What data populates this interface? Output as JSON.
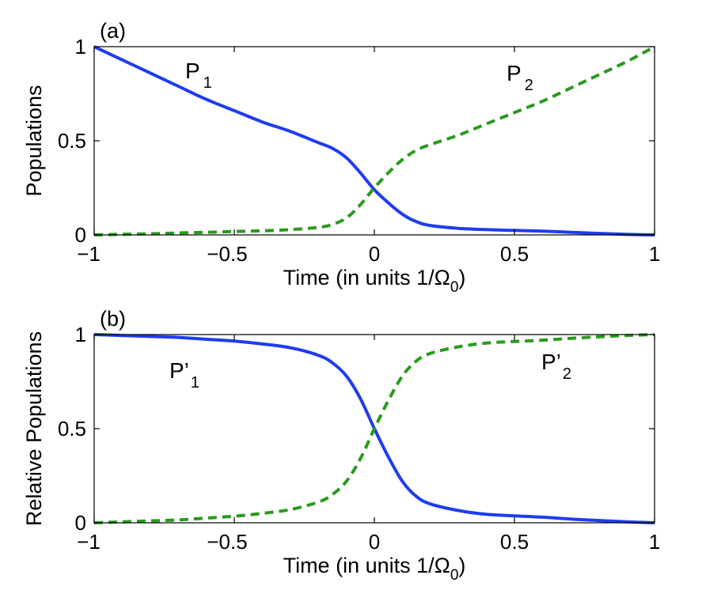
{
  "chart_data": [
    {
      "panel_label": "(a)",
      "type": "line",
      "xlabel": "Time (in units 1/Ω",
      "xlabel_sub": "0",
      "xlabel_close": ")",
      "ylabel": "Populations",
      "xlim": [
        -1,
        1
      ],
      "ylim": [
        0,
        1
      ],
      "xticks": [
        -1,
        -0.5,
        0,
        0.5,
        1
      ],
      "xtick_labels": [
        "−1",
        "−0.5",
        "0",
        "0.5",
        "1"
      ],
      "yticks": [
        0,
        0.5,
        1
      ],
      "ytick_labels": [
        "0",
        "0.5",
        "1"
      ],
      "grid": false,
      "series": [
        {
          "name": "P",
          "name_sub": "1",
          "color": "#1f3cf0",
          "style": "solid",
          "x": [
            -1,
            -0.9,
            -0.8,
            -0.7,
            -0.6,
            -0.5,
            -0.4,
            -0.3,
            -0.2,
            -0.15,
            -0.1,
            -0.05,
            0,
            0.05,
            0.1,
            0.15,
            0.2,
            0.3,
            0.4,
            0.5,
            0.6,
            0.7,
            0.8,
            0.9,
            1
          ],
          "y": [
            1,
            0.93,
            0.86,
            0.79,
            0.72,
            0.66,
            0.6,
            0.55,
            0.49,
            0.46,
            0.41,
            0.33,
            0.24,
            0.17,
            0.11,
            0.07,
            0.05,
            0.035,
            0.028,
            0.024,
            0.02,
            0.014,
            0.008,
            0.003,
            0
          ]
        },
        {
          "name": "P",
          "name_sub": "2",
          "color": "#2a9a1e",
          "style": "dashed",
          "x": [
            -1,
            -0.9,
            -0.8,
            -0.7,
            -0.6,
            -0.5,
            -0.4,
            -0.3,
            -0.2,
            -0.15,
            -0.1,
            -0.05,
            0,
            0.05,
            0.1,
            0.15,
            0.2,
            0.3,
            0.4,
            0.5,
            0.6,
            0.7,
            0.8,
            0.9,
            1
          ],
          "y": [
            0,
            0.003,
            0.006,
            0.01,
            0.014,
            0.018,
            0.022,
            0.028,
            0.04,
            0.055,
            0.09,
            0.16,
            0.25,
            0.33,
            0.4,
            0.45,
            0.48,
            0.53,
            0.59,
            0.65,
            0.71,
            0.78,
            0.85,
            0.92,
            1
          ]
        }
      ]
    },
    {
      "panel_label": "(b)",
      "type": "line",
      "xlabel": "Time (in units 1/Ω",
      "xlabel_sub": "0",
      "xlabel_close": ")",
      "ylabel": "Relative Populations",
      "xlim": [
        -1,
        1
      ],
      "ylim": [
        0,
        1
      ],
      "xticks": [
        -1,
        -0.5,
        0,
        0.5,
        1
      ],
      "xtick_labels": [
        "−1",
        "−0.5",
        "0",
        "0.5",
        "1"
      ],
      "yticks": [
        0,
        0.5,
        1
      ],
      "ytick_labels": [
        "0",
        "0.5",
        "1"
      ],
      "grid": false,
      "series": [
        {
          "name": "P’",
          "name_sub": "1",
          "color": "#1f3cf0",
          "style": "solid",
          "x": [
            -1,
            -0.9,
            -0.8,
            -0.7,
            -0.6,
            -0.5,
            -0.4,
            -0.3,
            -0.2,
            -0.15,
            -0.1,
            -0.05,
            0,
            0.05,
            0.1,
            0.15,
            0.2,
            0.3,
            0.4,
            0.5,
            0.6,
            0.7,
            0.8,
            0.9,
            1
          ],
          "y": [
            1,
            0.995,
            0.99,
            0.985,
            0.975,
            0.965,
            0.95,
            0.93,
            0.89,
            0.85,
            0.78,
            0.66,
            0.5,
            0.35,
            0.22,
            0.14,
            0.1,
            0.065,
            0.045,
            0.037,
            0.03,
            0.02,
            0.012,
            0.005,
            0
          ]
        },
        {
          "name": "P’",
          "name_sub": "2",
          "color": "#2a9a1e",
          "style": "dashed",
          "x": [
            -1,
            -0.9,
            -0.8,
            -0.7,
            -0.6,
            -0.5,
            -0.4,
            -0.3,
            -0.2,
            -0.15,
            -0.1,
            -0.05,
            0,
            0.05,
            0.1,
            0.15,
            0.2,
            0.3,
            0.4,
            0.5,
            0.6,
            0.7,
            0.8,
            0.9,
            1
          ],
          "y": [
            0,
            0.005,
            0.01,
            0.015,
            0.025,
            0.035,
            0.05,
            0.07,
            0.11,
            0.15,
            0.22,
            0.34,
            0.5,
            0.65,
            0.78,
            0.86,
            0.9,
            0.935,
            0.955,
            0.963,
            0.97,
            0.98,
            0.988,
            0.995,
            1
          ]
        }
      ]
    }
  ]
}
